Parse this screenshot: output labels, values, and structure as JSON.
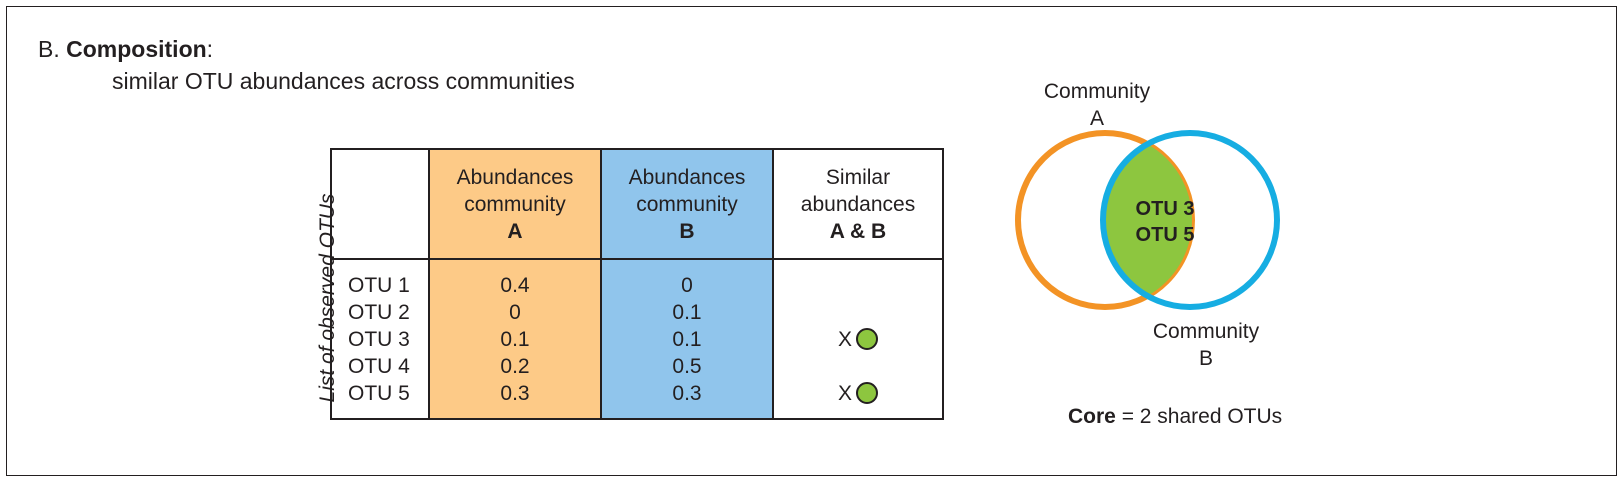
{
  "heading": {
    "prefix": "B.  ",
    "bold": "Composition",
    "suffix": ":"
  },
  "subtitle": "similar OTU abundances across communities",
  "table": {
    "side_label": "List of observed OTUs",
    "headers": [
      {
        "line1": "Abundances",
        "line2": "community",
        "line3": "A"
      },
      {
        "line1": "Abundances",
        "line2": "community",
        "line3": "B"
      },
      {
        "line1": "Similar",
        "line2": "abundances",
        "line3": "A & B"
      }
    ],
    "otus": [
      "OTU 1",
      "OTU 2",
      "OTU 3",
      "OTU 4",
      "OTU 5"
    ],
    "abund_a": [
      "0.4",
      "0",
      "0.1",
      "0.2",
      "0.3"
    ],
    "abund_b": [
      "0",
      "0.1",
      "0.1",
      "0.5",
      "0.3"
    ],
    "similar_mark": "X",
    "similar_flags": [
      false,
      false,
      true,
      false,
      true
    ]
  },
  "venn": {
    "community_a_line1": "Community",
    "community_a_line2": "A",
    "community_b_line1": "Community",
    "community_b_line2": "B",
    "shared": [
      "OTU 3",
      "OTU 5"
    ],
    "core_bold": "Core",
    "core_rest": " =  2 shared OTUs"
  },
  "colors": {
    "community_a_fill": "#fdca87",
    "community_b_fill": "#90c5ec",
    "community_a_ring": "#f39325",
    "community_b_ring": "#16ade2",
    "shared_fill": "#8dc63f"
  }
}
